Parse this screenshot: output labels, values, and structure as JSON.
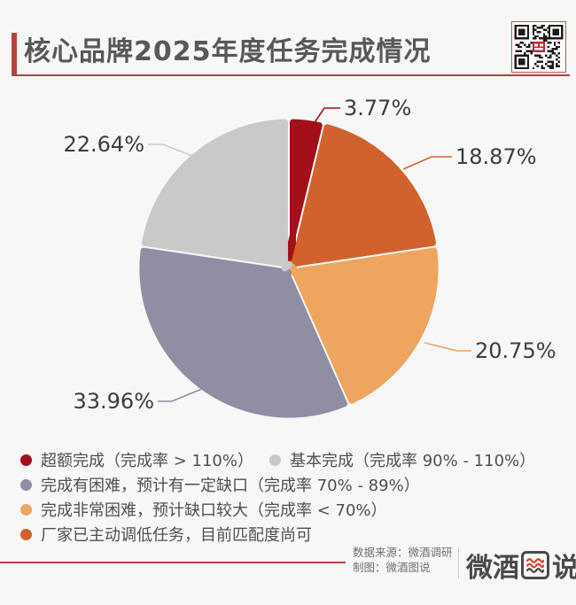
{
  "header": {
    "title": "核心品牌2025年度任务完成情况"
  },
  "chart_data": {
    "type": "pie",
    "title": "核心品牌2025年度任务完成情况",
    "unit": "%",
    "start_angle": "12-o'clock",
    "direction": "clockwise",
    "slices": [
      {
        "name": "超额完成（完成率 > 110%）",
        "value": 3.77,
        "label": "3.77%",
        "color": "#a30f1b"
      },
      {
        "name": "厂家已主动调低任务，目前匹配度尚可",
        "value": 18.87,
        "label": "18.87%",
        "color": "#d2622d"
      },
      {
        "name": "完成非常困难，预计缺口较大（完成率 < 70%）",
        "value": 20.75,
        "label": "20.75%",
        "color": "#eda55f"
      },
      {
        "name": "完成有困难，预计有一定缺口（完成率 70% - 89%）",
        "value": 33.96,
        "label": "33.96%",
        "color": "#8f8ea3"
      },
      {
        "name": "基本完成（完成率 90% - 110%）",
        "value": 22.64,
        "label": "22.64%",
        "color": "#c9c9c9"
      }
    ],
    "legend": [
      {
        "label": "超额完成（完成率 > 110%）",
        "color": "#a30f1b"
      },
      {
        "label": "基本完成（完成率 90% - 110%）",
        "color": "#c9c9c9"
      },
      {
        "label": "完成有困难，预计有一定缺口（完成率 70% - 89%）",
        "color": "#8f8ea3"
      },
      {
        "label": "完成非常困难，预计缺口较大（完成率 < 70%）",
        "color": "#eda55f"
      },
      {
        "label": "厂家已主动调低任务，目前匹配度尚可",
        "color": "#d2622d"
      }
    ],
    "legend_position": "bottom-left"
  },
  "footer": {
    "source": "数据来源：微酒调研",
    "credit": "制图：微酒图说",
    "logo_text": "微酒图说"
  },
  "colors": {
    "accent_red": "#b5423e",
    "background": "#f7f7f8",
    "title_text": "#595757"
  }
}
